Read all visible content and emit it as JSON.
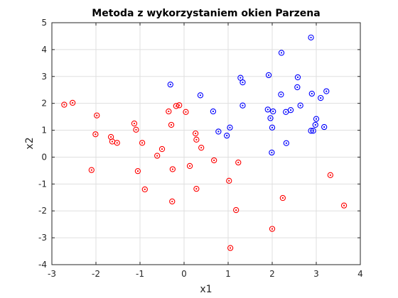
{
  "chart_data": {
    "type": "scatter",
    "title": "Metoda z wykorzystaniem okien Parzena",
    "xlabel": "x1",
    "ylabel": "x2",
    "xlim": [
      -3,
      4
    ],
    "ylim": [
      -4,
      5
    ],
    "xticks": [
      "-3",
      "-2",
      "-1",
      "0",
      "1",
      "2",
      "3",
      "4"
    ],
    "yticks": [
      "-4",
      "-3",
      "-2",
      "-1",
      "0",
      "1",
      "2",
      "3",
      "4",
      "5"
    ],
    "grid": true,
    "marker": "circle with center dot",
    "series": [
      {
        "color": "#0000ff",
        "points": [
          [
            2.88,
            4.45
          ],
          [
            2.21,
            3.88
          ],
          [
            1.92,
            3.05
          ],
          [
            1.28,
            2.95
          ],
          [
            2.58,
            2.97
          ],
          [
            1.33,
            2.78
          ],
          [
            -0.31,
            2.7
          ],
          [
            2.57,
            2.6
          ],
          [
            0.37,
            2.3
          ],
          [
            2.2,
            2.33
          ],
          [
            2.9,
            2.36
          ],
          [
            3.23,
            2.45
          ],
          [
            3.1,
            2.2
          ],
          [
            1.33,
            1.92
          ],
          [
            2.64,
            1.92
          ],
          [
            0.66,
            1.7
          ],
          [
            1.9,
            1.77
          ],
          [
            2.02,
            1.7
          ],
          [
            2.42,
            1.75
          ],
          [
            2.31,
            1.68
          ],
          [
            1.96,
            1.45
          ],
          [
            3.0,
            1.42
          ],
          [
            2.98,
            1.2
          ],
          [
            3.18,
            1.12
          ],
          [
            1.04,
            1.1
          ],
          [
            2.0,
            1.1
          ],
          [
            2.88,
            0.98
          ],
          [
            2.93,
            0.98
          ],
          [
            0.78,
            0.95
          ],
          [
            0.97,
            0.8
          ],
          [
            2.32,
            0.52
          ],
          [
            1.99,
            0.17
          ]
        ]
      },
      {
        "color": "#ff0000",
        "points": [
          [
            -2.72,
            1.95
          ],
          [
            -2.53,
            2.02
          ],
          [
            -0.11,
            1.93
          ],
          [
            -0.18,
            1.9
          ],
          [
            -0.35,
            1.7
          ],
          [
            0.04,
            1.68
          ],
          [
            -1.98,
            1.55
          ],
          [
            -1.13,
            1.25
          ],
          [
            -0.29,
            1.2
          ],
          [
            -1.09,
            1.02
          ],
          [
            0.26,
            0.88
          ],
          [
            -2.01,
            0.85
          ],
          [
            -1.66,
            0.75
          ],
          [
            -1.63,
            0.58
          ],
          [
            -1.52,
            0.53
          ],
          [
            -0.95,
            0.53
          ],
          [
            0.28,
            0.65
          ],
          [
            0.39,
            0.35
          ],
          [
            -0.5,
            0.3
          ],
          [
            -0.61,
            0.05
          ],
          [
            0.68,
            -0.12
          ],
          [
            1.23,
            -0.2
          ],
          [
            0.13,
            -0.33
          ],
          [
            -0.26,
            -0.45
          ],
          [
            -2.1,
            -0.48
          ],
          [
            -1.05,
            -0.52
          ],
          [
            3.32,
            -0.67
          ],
          [
            1.02,
            -0.88
          ],
          [
            -0.89,
            -1.2
          ],
          [
            0.28,
            -1.18
          ],
          [
            2.24,
            -1.52
          ],
          [
            -0.27,
            -1.65
          ],
          [
            3.63,
            -1.8
          ],
          [
            1.18,
            -1.97
          ],
          [
            2.0,
            -2.67
          ],
          [
            1.05,
            -3.38
          ]
        ]
      }
    ]
  }
}
